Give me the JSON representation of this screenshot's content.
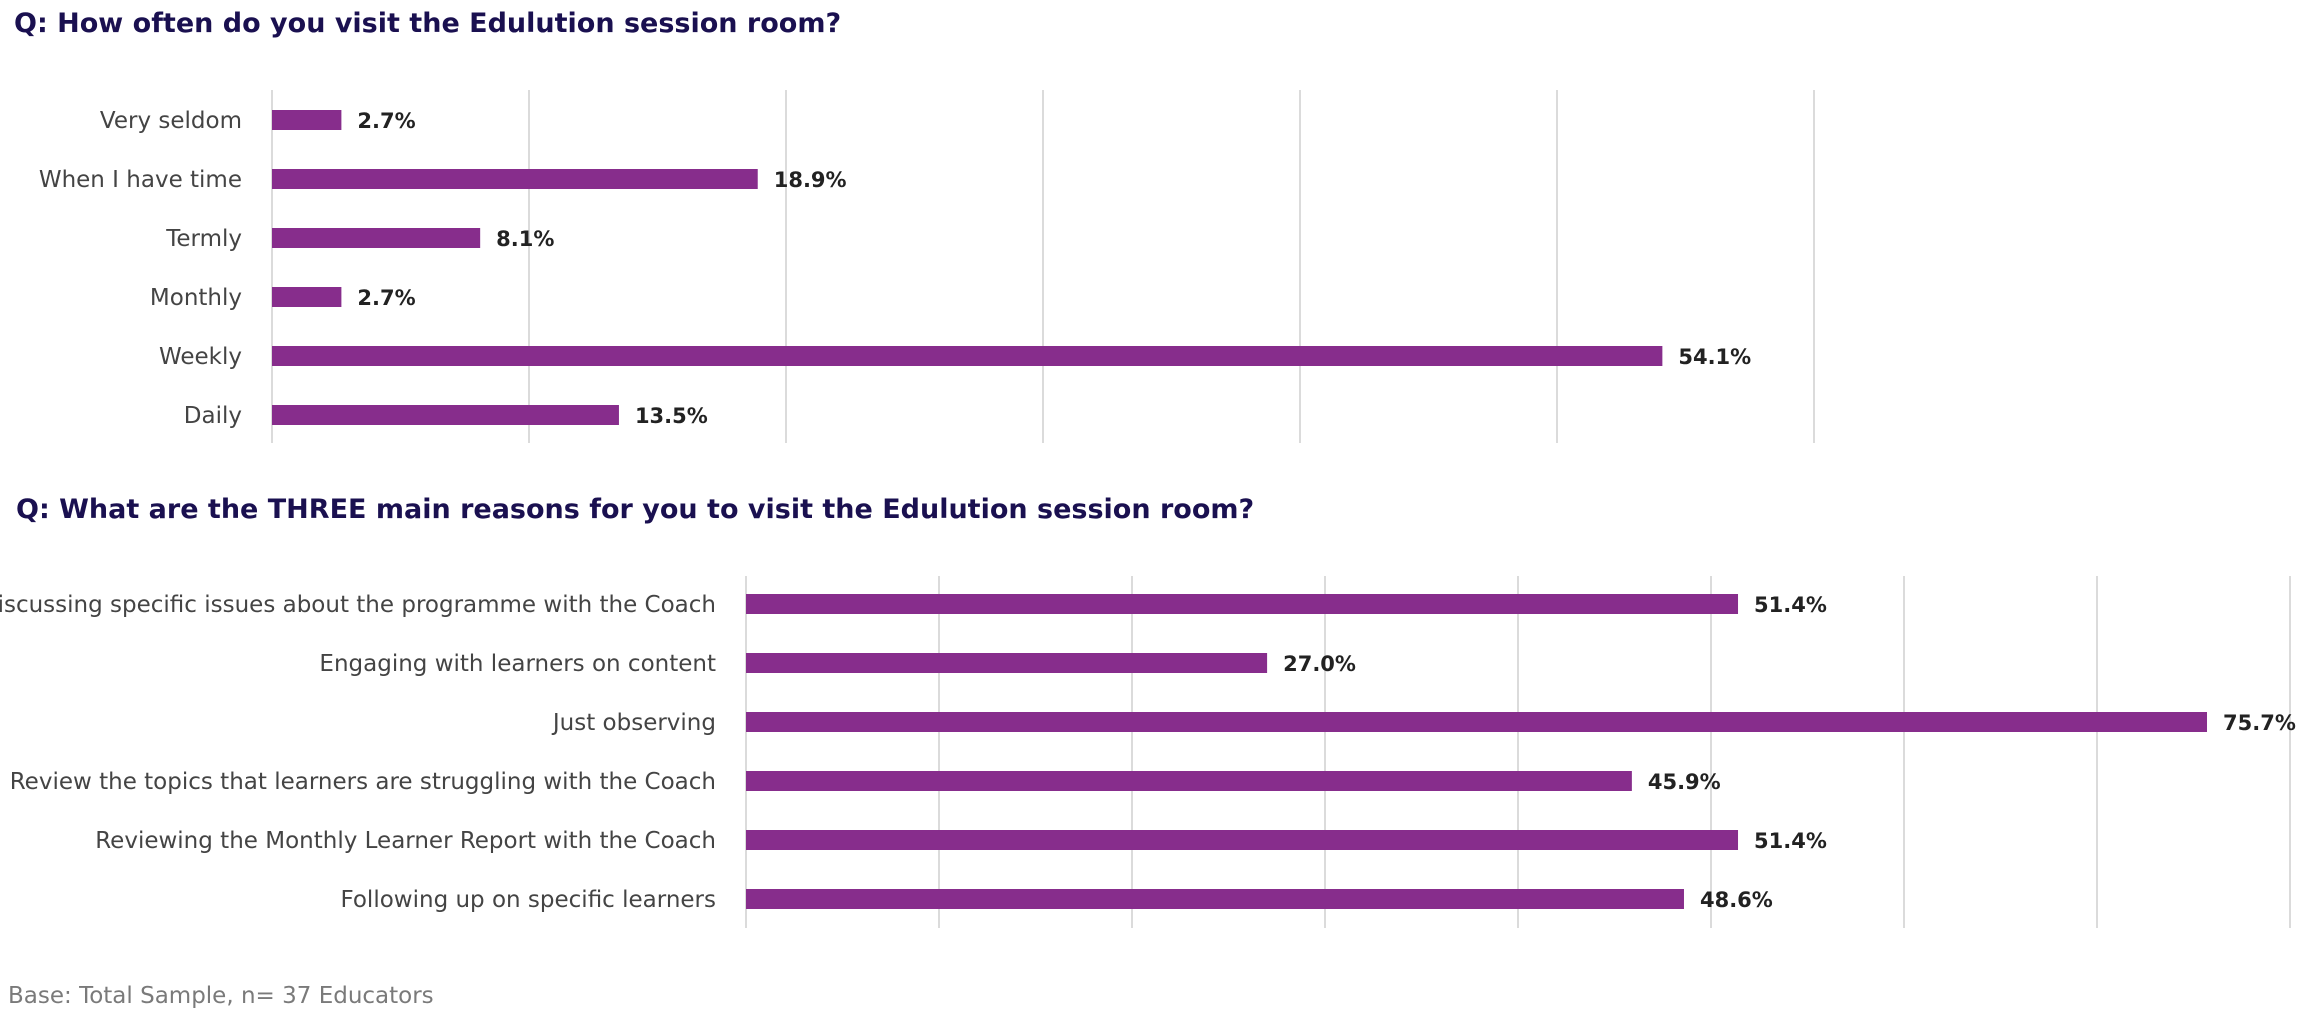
{
  "colors": {
    "bar": "#872d8c",
    "title": "#1a1050"
  },
  "base_note": "Base: Total Sample, n= 37 Educators",
  "chart_data": [
    {
      "type": "bar",
      "orientation": "horizontal",
      "title": "Q: How often do you visit the Edulution session room?",
      "categories": [
        "Very seldom",
        "When I have time",
        "Termly",
        "Monthly",
        "Weekly",
        "Daily"
      ],
      "values": [
        2.7,
        18.9,
        8.1,
        2.7,
        54.1,
        13.5
      ],
      "value_labels": [
        "2.7%",
        "18.9%",
        "8.1%",
        "2.7%",
        "54.1%",
        "13.5%"
      ],
      "xlim": [
        0,
        60
      ],
      "grid": true
    },
    {
      "type": "bar",
      "orientation": "horizontal",
      "title": "Q: What are the THREE main reasons for you to visit the Edulution session room?",
      "categories": [
        "Discussing specific issues about the programme with the Coach",
        "Engaging with learners on content",
        "Just observing",
        "Review the topics that learners are struggling with the Coach",
        "Reviewing the Monthly Learner Report with the Coach",
        "Following up on specific learners"
      ],
      "values": [
        51.4,
        27.0,
        75.7,
        45.9,
        51.4,
        48.6
      ],
      "value_labels": [
        "51.4%",
        "27.0%",
        "75.7%",
        "45.9%",
        "51.4%",
        "48.6%"
      ],
      "xlim": [
        0,
        80
      ],
      "grid": true
    }
  ]
}
